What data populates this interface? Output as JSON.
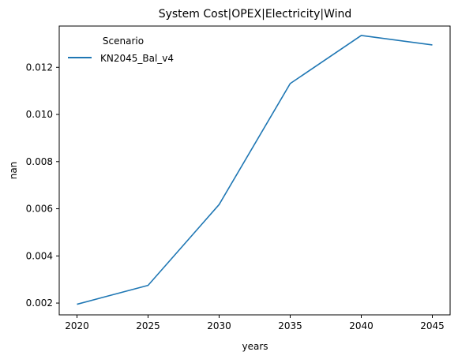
{
  "chart_data": {
    "type": "line",
    "title": "System Cost|OPEX|Electricity|Wind",
    "xlabel": "years",
    "ylabel": "nan",
    "x": [
      2020,
      2025,
      2030,
      2035,
      2040,
      2045
    ],
    "xticks": [
      "2020",
      "2025",
      "2030",
      "2035",
      "2040",
      "2045"
    ],
    "yticks": [
      "0.002",
      "0.004",
      "0.006",
      "0.008",
      "0.010",
      "0.012"
    ],
    "ylim": [
      0.0015,
      0.01375
    ],
    "xlim": [
      2018.75,
      2046.25
    ],
    "grid": false,
    "legend": {
      "title": "Scenario",
      "placement": "top-left"
    },
    "series": [
      {
        "name": "KN2045_Bal_v4",
        "color": "#1f77b4",
        "values": [
          0.00195,
          0.00275,
          0.00618,
          0.01131,
          0.01335,
          0.01295
        ]
      }
    ]
  }
}
